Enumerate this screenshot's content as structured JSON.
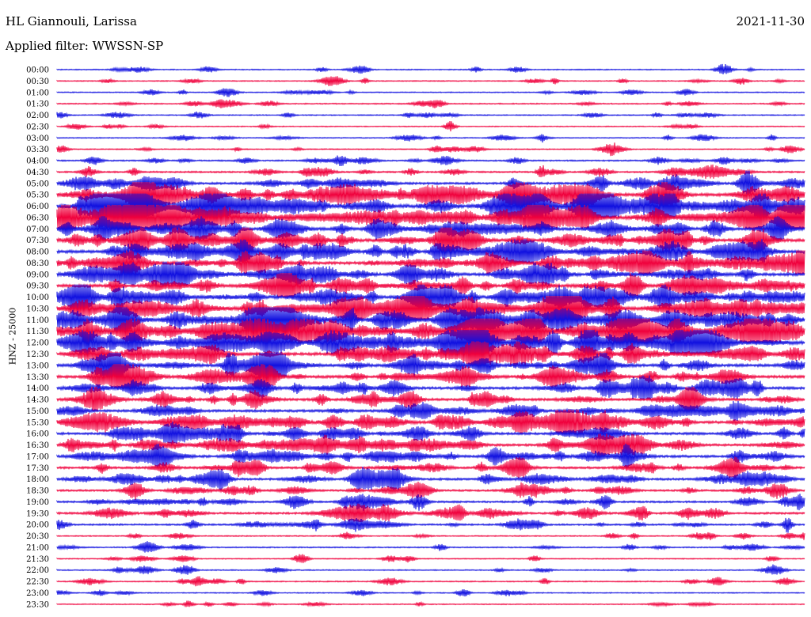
{
  "header": {
    "station": "HL Giannouli, Larissa",
    "date": "2021-11-30",
    "filter": "Applied filter: WWSSN-SP"
  },
  "chart_data": {
    "type": "line",
    "title": "HL Giannouli, Larissa",
    "ylabel": "HNZ - 25000",
    "x_range": [
      0,
      30
    ],
    "series_colors": [
      "#1010e0",
      "#f0003c"
    ],
    "rows": [
      {
        "label": "00:00",
        "activity": 0.1
      },
      {
        "label": "00:30",
        "activity": 0.12
      },
      {
        "label": "01:00",
        "activity": 0.12
      },
      {
        "label": "01:30",
        "activity": 0.15
      },
      {
        "label": "02:00",
        "activity": 0.12
      },
      {
        "label": "02:30",
        "activity": 0.08
      },
      {
        "label": "03:00",
        "activity": 0.12
      },
      {
        "label": "03:30",
        "activity": 0.14
      },
      {
        "label": "04:00",
        "activity": 0.22
      },
      {
        "label": "04:30",
        "activity": 0.28
      },
      {
        "label": "05:00",
        "activity": 0.45
      },
      {
        "label": "05:30",
        "activity": 0.7
      },
      {
        "label": "06:00",
        "activity": 0.85
      },
      {
        "label": "06:30",
        "activity": 0.8
      },
      {
        "label": "07:00",
        "activity": 0.65
      },
      {
        "label": "07:30",
        "activity": 0.65
      },
      {
        "label": "08:00",
        "activity": 0.65
      },
      {
        "label": "08:30",
        "activity": 0.65
      },
      {
        "label": "09:00",
        "activity": 0.65
      },
      {
        "label": "09:30",
        "activity": 0.65
      },
      {
        "label": "10:00",
        "activity": 0.7
      },
      {
        "label": "10:30",
        "activity": 0.8
      },
      {
        "label": "11:00",
        "activity": 0.85
      },
      {
        "label": "11:30",
        "activity": 0.85
      },
      {
        "label": "12:00",
        "activity": 0.75
      },
      {
        "label": "12:30",
        "activity": 0.65
      },
      {
        "label": "13:00",
        "activity": 0.6
      },
      {
        "label": "13:30",
        "activity": 0.6
      },
      {
        "label": "14:00",
        "activity": 0.55
      },
      {
        "label": "14:30",
        "activity": 0.55
      },
      {
        "label": "15:00",
        "activity": 0.5
      },
      {
        "label": "15:30",
        "activity": 0.6
      },
      {
        "label": "16:00",
        "activity": 0.5
      },
      {
        "label": "16:30",
        "activity": 0.5
      },
      {
        "label": "17:00",
        "activity": 0.5
      },
      {
        "label": "17:30",
        "activity": 0.45
      },
      {
        "label": "18:00",
        "activity": 0.45
      },
      {
        "label": "18:30",
        "activity": 0.35
      },
      {
        "label": "19:00",
        "activity": 0.35
      },
      {
        "label": "19:30",
        "activity": 0.4
      },
      {
        "label": "20:00",
        "activity": 0.3
      },
      {
        "label": "20:30",
        "activity": 0.15
      },
      {
        "label": "21:00",
        "activity": 0.15
      },
      {
        "label": "21:30",
        "activity": 0.12
      },
      {
        "label": "22:00",
        "activity": 0.15
      },
      {
        "label": "22:30",
        "activity": 0.15
      },
      {
        "label": "23:00",
        "activity": 0.1
      },
      {
        "label": "23:30",
        "activity": 0.1
      }
    ]
  }
}
